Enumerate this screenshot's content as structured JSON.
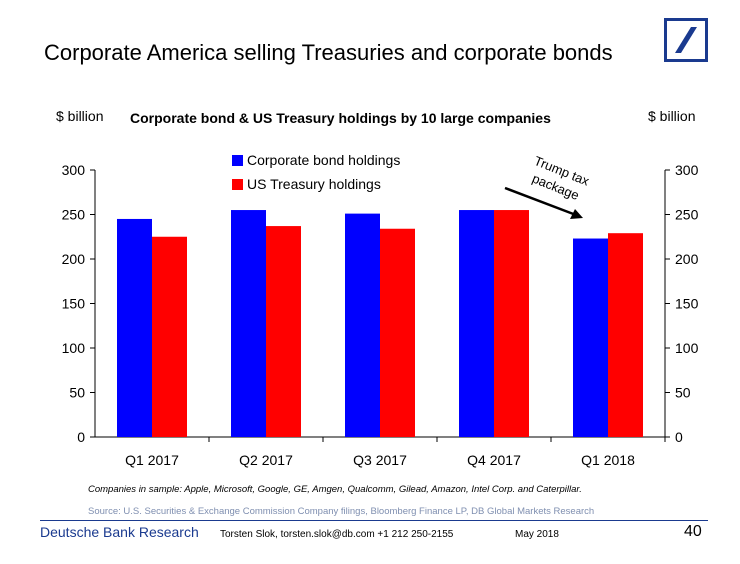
{
  "slide": {
    "title": "Corporate America selling Treasuries and corporate bonds",
    "logo": "deutsche-bank-slash-logo"
  },
  "chart_data": {
    "type": "bar",
    "title": "Corporate bond & US Treasury holdings by 10 large companies",
    "ylabel_left": "$ billion",
    "ylabel_right": "$ billion",
    "categories": [
      "Q1 2017",
      "Q2 2017",
      "Q3 2017",
      "Q4 2017",
      "Q1 2018"
    ],
    "series": [
      {
        "name": "Corporate bond holdings",
        "color": "#0000ff",
        "values": [
          245,
          255,
          251,
          255,
          223
        ]
      },
      {
        "name": "US Treasury holdings",
        "color": "#ff0000",
        "values": [
          225,
          237,
          234,
          255,
          229
        ]
      }
    ],
    "ylim": [
      0,
      300
    ],
    "yticks": [
      0,
      50,
      100,
      150,
      200,
      250,
      300
    ],
    "grid": false,
    "legend": "top-left",
    "annotation": {
      "text": "Trump tax package",
      "points_to": "Q1 2018"
    }
  },
  "notes": {
    "sample": "Companies in sample: Apple, Microsoft, Google, GE, Amgen, Qualcomm, Gilead, Amazon, Intel Corp. and Caterpillar.",
    "source": "Source: U.S. Securities & Exchange Commission Company filings, Bloomberg Finance LP, DB Global Markets Research"
  },
  "footer": {
    "org": "Deutsche Bank Research",
    "author": "Torsten Slok, torsten.slok@db.com  +1 212 250-2155",
    "date": "May 2018",
    "page": "40"
  }
}
